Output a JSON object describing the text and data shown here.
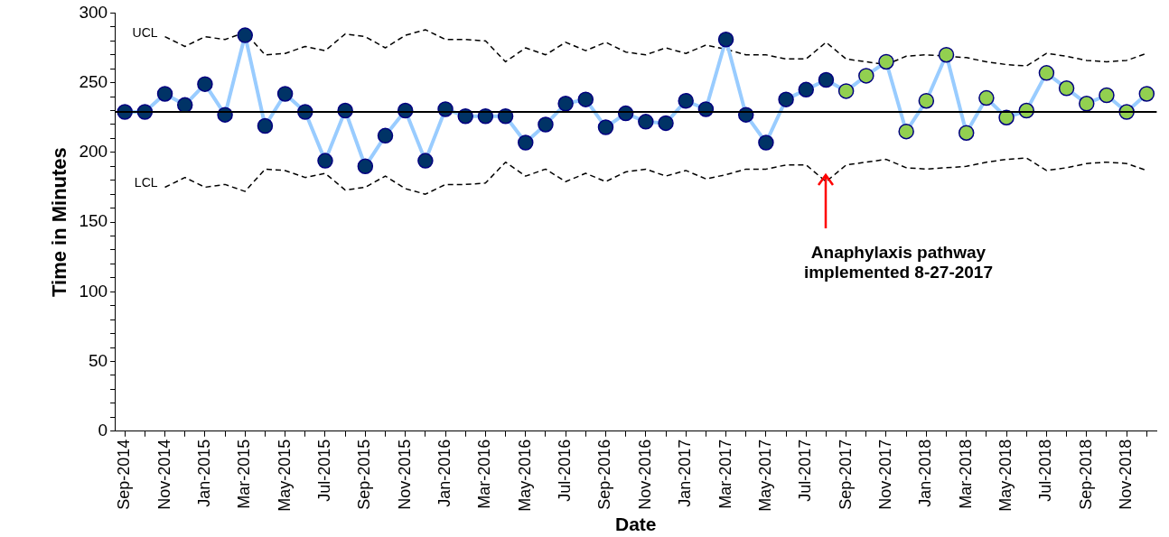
{
  "chart_data": {
    "type": "line",
    "xlabel": "Date",
    "ylabel": "Time in Minutes",
    "categories": [
      "Sep-2014",
      null,
      "Nov-2014",
      null,
      "Jan-2015",
      null,
      "Mar-2015",
      null,
      "May-2015",
      null,
      "Jul-2015",
      null,
      "Sep-2015",
      null,
      "Nov-2015",
      null,
      "Jan-2016",
      null,
      "Mar-2016",
      null,
      "May-2016",
      null,
      "Jul-2016",
      null,
      "Sep-2016",
      null,
      "Nov-2016",
      null,
      "Jan-2017",
      null,
      "Mar-2017",
      null,
      "May-2017",
      null,
      "Jul-2017",
      null,
      "Sep-2017",
      null,
      "Nov-2017",
      null,
      "Jan-2018",
      null,
      "Mar-2018",
      null,
      "May-2018",
      null,
      "Jul-2018",
      null,
      "Sep-2018",
      null,
      "Nov-2018",
      null
    ],
    "series": [
      {
        "color": "#99ccff",
        "marker": "circle",
        "colors": [
          "#003366",
          "#003366",
          "#003366",
          "#003366",
          "#003366",
          "#003366",
          "#003366",
          "#003366",
          "#003366",
          "#003366",
          "#003366",
          "#003366",
          "#003366",
          "#003366",
          "#003366",
          "#003366",
          "#003366",
          "#003366",
          "#003366",
          "#003366",
          "#003366",
          "#003366",
          "#003366",
          "#003366",
          "#003366",
          "#003366",
          "#003366",
          "#003366",
          "#003366",
          "#003366",
          "#003366",
          "#003366",
          "#003366",
          "#003366",
          "#003366",
          "#003366",
          "#92d050",
          "#92d050",
          "#92d050",
          "#92d050",
          "#92d050",
          "#92d050",
          "#92d050",
          "#92d050",
          "#92d050",
          "#92d050",
          "#92d050",
          "#92d050",
          "#92d050",
          "#92d050",
          "#92d050",
          "#92d050"
        ],
        "values": [
          229,
          229,
          242,
          234,
          249,
          227,
          284,
          219,
          242,
          229,
          194,
          230,
          190,
          212,
          230,
          194,
          231,
          226,
          226,
          226,
          207,
          220,
          235,
          238,
          218,
          228,
          222,
          221,
          237,
          231,
          281,
          227,
          207,
          238,
          245,
          252,
          244,
          255,
          265,
          215,
          237,
          270,
          214,
          239,
          225,
          230,
          257,
          246,
          235,
          241,
          229,
          242
        ]
      },
      {
        "name": "UCL",
        "color": "#000000",
        "marker": "none",
        "line_style": "dashed",
        "values": [
          null,
          null,
          283,
          276,
          283,
          281,
          286,
          270,
          271,
          276,
          273,
          285,
          283,
          275,
          284,
          288,
          281,
          281,
          280,
          265,
          275,
          270,
          279,
          273,
          279,
          272,
          270,
          275,
          271,
          277,
          274,
          270,
          270,
          267,
          267,
          279,
          267,
          265,
          263,
          269,
          270,
          269,
          268,
          265,
          263,
          262,
          271,
          269,
          266,
          265,
          266,
          271
        ]
      },
      {
        "name": "LCL",
        "color": "#000000",
        "marker": "none",
        "line_style": "dashed",
        "values": [
          null,
          null,
          175,
          182,
          175,
          177,
          172,
          188,
          187,
          182,
          185,
          173,
          175,
          183,
          174,
          170,
          177,
          177,
          178,
          193,
          183,
          188,
          179,
          185,
          179,
          186,
          188,
          183,
          187,
          181,
          184,
          188,
          188,
          191,
          191,
          179,
          191,
          193,
          195,
          189,
          188,
          189,
          190,
          193,
          195,
          196,
          187,
          189,
          192,
          193,
          192,
          187
        ]
      }
    ],
    "ref_lines": [
      {
        "axis": "y",
        "value": 229,
        "color": "#000000",
        "line_style": "solid"
      }
    ],
    "annotations": [
      "Anaphylaxis pathway implemented 8-27-2017"
    ],
    "ylim": [
      0,
      300
    ],
    "yticks": [
      0,
      {
        "value": 10,
        "label": null
      },
      {
        "value": 20,
        "label": null
      },
      {
        "value": 30,
        "label": null
      },
      {
        "value": 40,
        "label": null
      },
      50,
      {
        "value": 60,
        "label": null
      },
      {
        "value": 70,
        "label": null
      },
      {
        "value": 80,
        "label": null
      },
      {
        "value": 90,
        "label": null
      },
      100,
      {
        "value": 110,
        "label": null
      },
      {
        "value": 120,
        "label": null
      },
      {
        "value": 130,
        "label": null
      },
      {
        "value": 140,
        "label": null
      },
      150,
      {
        "value": 160,
        "label": null
      },
      {
        "value": 170,
        "label": null
      },
      {
        "value": 180,
        "label": null
      },
      {
        "value": 190,
        "label": null
      },
      200,
      {
        "value": 210,
        "label": null
      },
      {
        "value": 220,
        "label": null
      },
      {
        "value": 230,
        "label": null
      },
      {
        "value": 240,
        "label": null
      },
      250,
      {
        "value": 260,
        "label": null
      },
      {
        "value": 270,
        "label": null
      },
      {
        "value": 280,
        "label": null
      },
      {
        "value": 290,
        "label": null
      },
      300
    ],
    "grid": false,
    "legend": false
  }
}
